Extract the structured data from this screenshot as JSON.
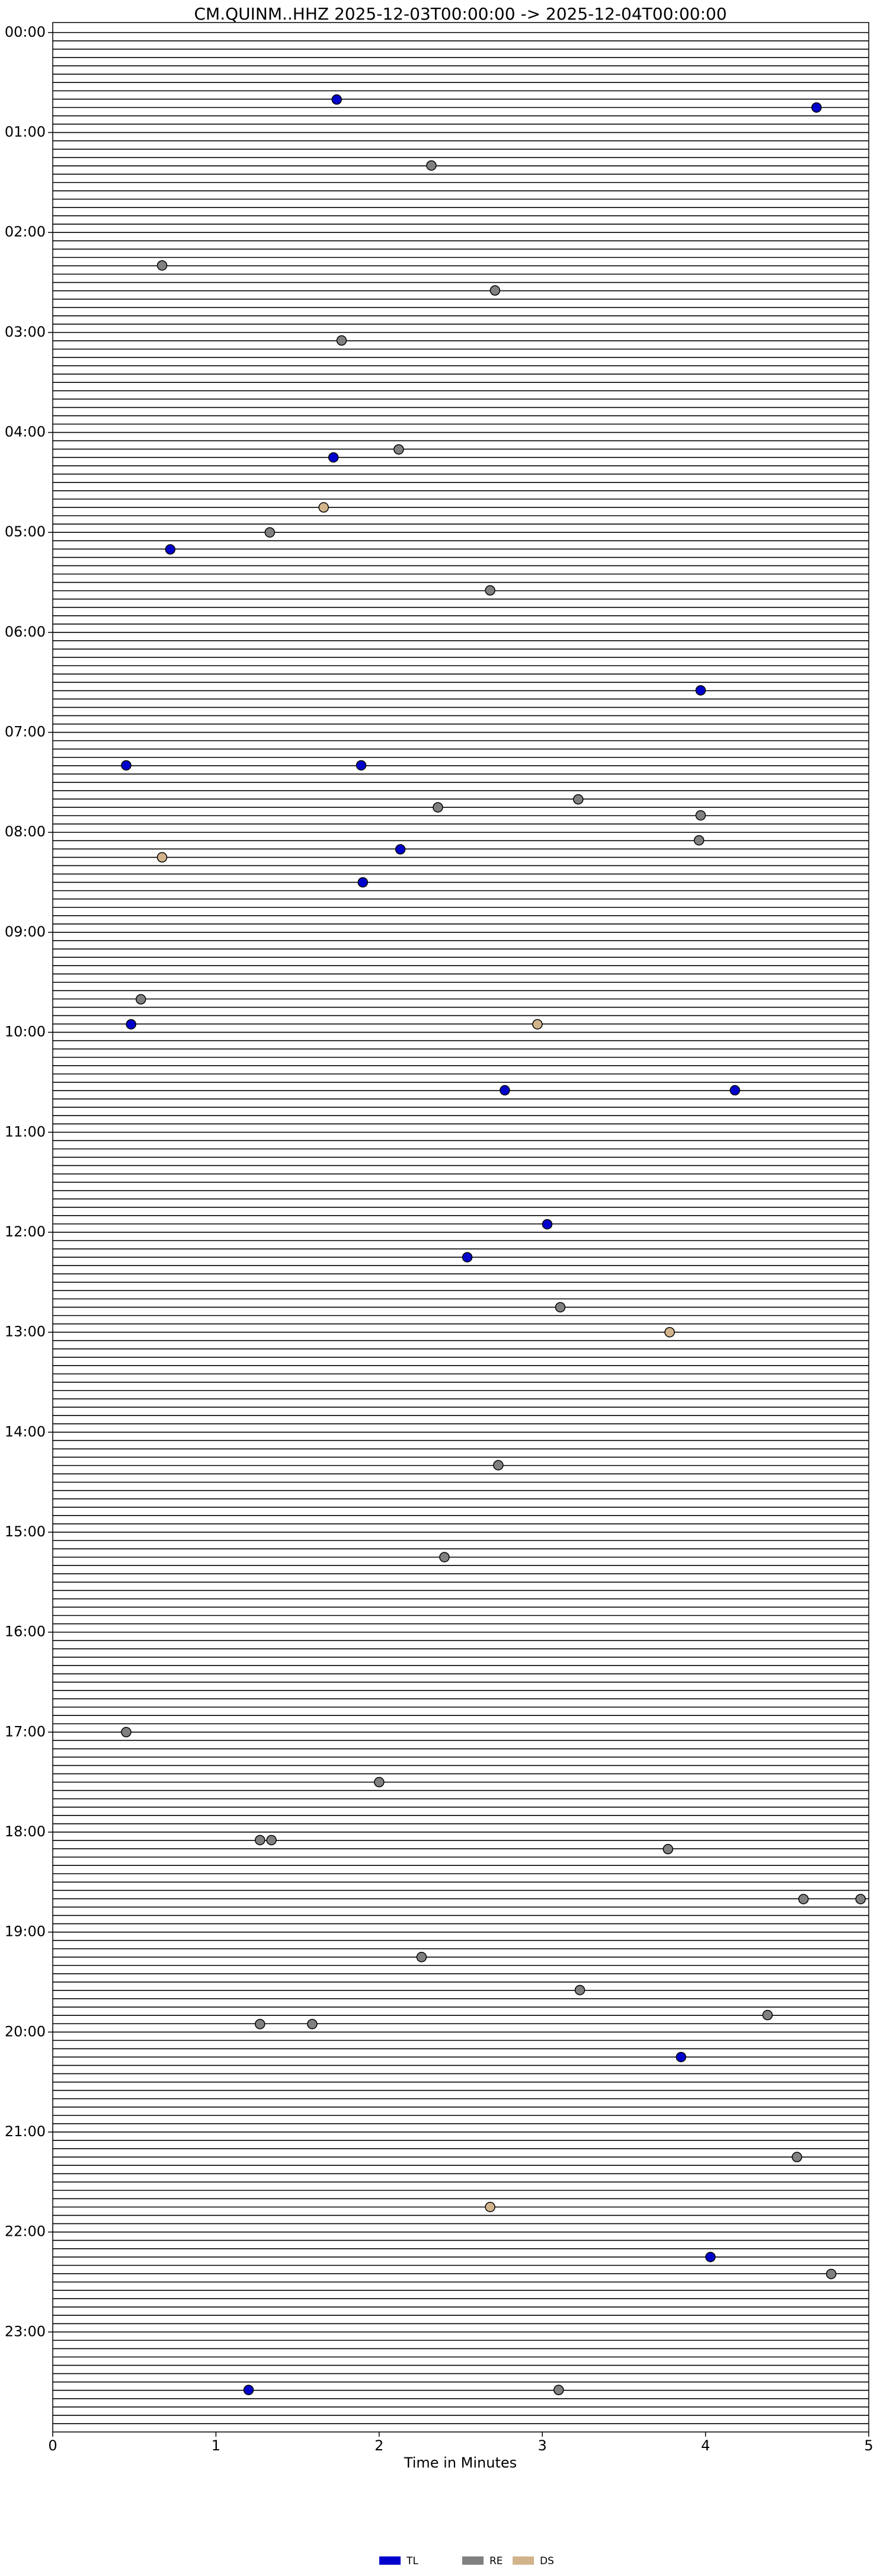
{
  "chart_data": {
    "type": "scatter",
    "title": "CM.QUINM..HHZ  2025-12-03T00:00:00 -> 2025-12-04T00:00:00",
    "x_label": "Time in Minutes",
    "xlim": [
      0,
      5
    ],
    "xticks": [
      0,
      1,
      2,
      3,
      4,
      5
    ],
    "ylim": [
      -0.1,
      24
    ],
    "yticks": [
      {
        "value": 0,
        "label": "00:00"
      },
      {
        "value": 1,
        "label": "01:00"
      },
      {
        "value": 2,
        "label": "02:00"
      },
      {
        "value": 3,
        "label": "03:00"
      },
      {
        "value": 4,
        "label": "04:00"
      },
      {
        "value": 5,
        "label": "05:00"
      },
      {
        "value": 6,
        "label": "06:00"
      },
      {
        "value": 7,
        "label": "07:00"
      },
      {
        "value": 8,
        "label": "08:00"
      },
      {
        "value": 9,
        "label": "09:00"
      },
      {
        "value": 10,
        "label": "10:00"
      },
      {
        "value": 11,
        "label": "11:00"
      },
      {
        "value": 12,
        "label": "12:00"
      },
      {
        "value": 13,
        "label": "13:00"
      },
      {
        "value": 14,
        "label": "14:00"
      },
      {
        "value": 15,
        "label": "15:00"
      },
      {
        "value": 16,
        "label": "16:00"
      },
      {
        "value": 17,
        "label": "17:00"
      },
      {
        "value": 18,
        "label": "18:00"
      },
      {
        "value": 19,
        "label": "19:00"
      },
      {
        "value": 20,
        "label": "20:00"
      },
      {
        "value": 21,
        "label": "21:00"
      },
      {
        "value": 22,
        "label": "22:00"
      },
      {
        "value": 23,
        "label": "23:00"
      }
    ],
    "series": [
      {
        "name": "TL",
        "color": "#0000cc",
        "x": [
          1.74,
          4.68,
          1.72,
          0.72,
          3.97,
          0.45,
          1.89,
          2.13,
          1.9,
          0.48,
          2.77,
          4.18,
          3.03,
          2.54,
          3.85,
          4.03,
          1.2
        ],
        "values": [
          0.67,
          0.75,
          4.25,
          5.17,
          6.58,
          7.33,
          7.33,
          8.17,
          8.5,
          9.92,
          10.58,
          10.58,
          11.92,
          12.25,
          20.25,
          22.25,
          23.58
        ]
      },
      {
        "name": "RE",
        "color": "#808080",
        "x": [
          2.32,
          0.67,
          2.71,
          1.77,
          2.12,
          1.33,
          2.68,
          3.22,
          2.36,
          3.97,
          3.96,
          0.54,
          3.11,
          2.73,
          2.4,
          0.45,
          2.0,
          1.27,
          1.34,
          3.77,
          4.6,
          4.95,
          2.26,
          3.23,
          4.38,
          1.27,
          1.59,
          4.56,
          4.77,
          3.1
        ],
        "values": [
          1.33,
          2.33,
          2.58,
          3.08,
          4.17,
          5.0,
          5.58,
          7.67,
          7.75,
          7.83,
          8.08,
          9.67,
          12.75,
          14.33,
          15.25,
          17.0,
          17.5,
          18.08,
          18.08,
          18.17,
          18.67,
          18.67,
          19.25,
          19.58,
          19.83,
          19.92,
          19.92,
          21.25,
          22.42,
          23.58
        ]
      },
      {
        "name": "DS",
        "color": "#d2b48c",
        "x": [
          1.66,
          0.67,
          2.97,
          3.78,
          2.68
        ],
        "values": [
          4.75,
          8.25,
          9.92,
          13.0,
          21.75
        ]
      }
    ]
  }
}
